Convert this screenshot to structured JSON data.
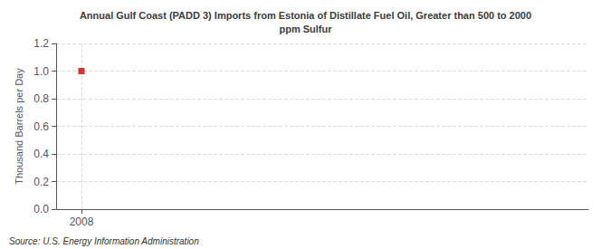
{
  "chart_data": {
    "type": "scatter",
    "title": "Annual Gulf Coast (PADD 3) Imports from Estonia of Distillate Fuel Oil, Greater than 500 to 2000\nppm Sulfur",
    "ylabel": "Thousand Barrels per Day",
    "annotations": [
      "Source: U.S. Energy Information Administration"
    ],
    "x": [
      2008
    ],
    "values": [
      1.0
    ],
    "color": "#cc0000",
    "marker": "square",
    "xlim": [
      2007.4,
      2020
    ],
    "ylim": [
      0.0,
      1.2
    ],
    "xticks": [
      2008
    ],
    "yticks": [
      {
        "value": 0.0,
        "label": "0.0"
      },
      0.2,
      0.4,
      0.6,
      0.8,
      {
        "value": 1.0,
        "label": "1.0"
      },
      1.2
    ],
    "grid": true
  }
}
